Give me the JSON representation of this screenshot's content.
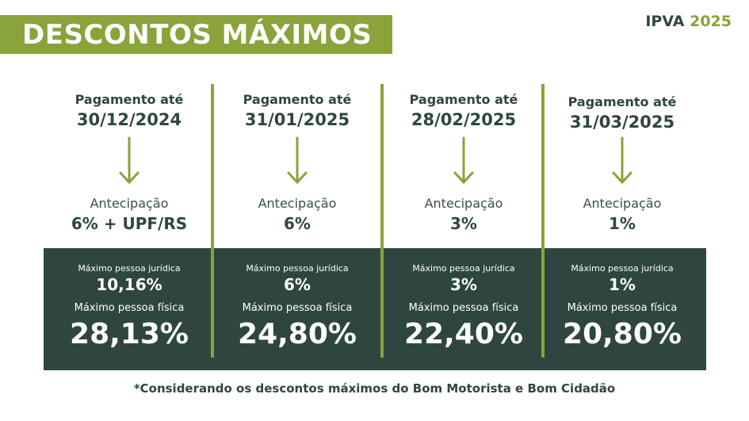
{
  "header": {
    "title": "DESCONTOS MÁXIMOS",
    "badge_prefix": "IPVA",
    "badge_year": "2025"
  },
  "columns": [
    {
      "payment_label": "Pagamento até",
      "payment_date": "30/12/2024",
      "advance_label": "Antecipação",
      "advance_value": "6% + UPF/RS",
      "pj_label": "Máximo pessoa jurídica",
      "pj_value": "10,16%",
      "pf_label": "Máximo pessoa física",
      "pf_value": "28,13%"
    },
    {
      "payment_label": "Pagamento até",
      "payment_date": "31/01/2025",
      "advance_label": "Antecipação",
      "advance_value": "6%",
      "pj_label": "Máximo pessoa jurídica",
      "pj_value": "6%",
      "pf_label": "Máximo pessoa física",
      "pf_value": "24,80%"
    },
    {
      "payment_label": "Pagamento até",
      "payment_date": "28/02/2025",
      "advance_label": "Antecipação",
      "advance_value": "3%",
      "pj_label": "Máximo pessoa jurídica",
      "pj_value": "3%",
      "pf_label": "Máximo pessoa física",
      "pf_value": "22,40%"
    },
    {
      "payment_label": "Pagamento até",
      "payment_date": "31/03/2025",
      "advance_label": "Antecipação",
      "advance_value": "1%",
      "pj_label": "Máximo pessoa jurídica",
      "pj_value": "1%",
      "pf_label": "Máximo pessoa física",
      "pf_value": "20,80%"
    }
  ],
  "footnote": "*Considerando os descontos máximos do Bom Motorista e Bom Cidadão",
  "colors": {
    "accent_green": "#8aa33a",
    "dark_teal": "#2f4640",
    "white": "#ffffff"
  },
  "icons": {
    "arrow": "arrow-down-icon"
  }
}
